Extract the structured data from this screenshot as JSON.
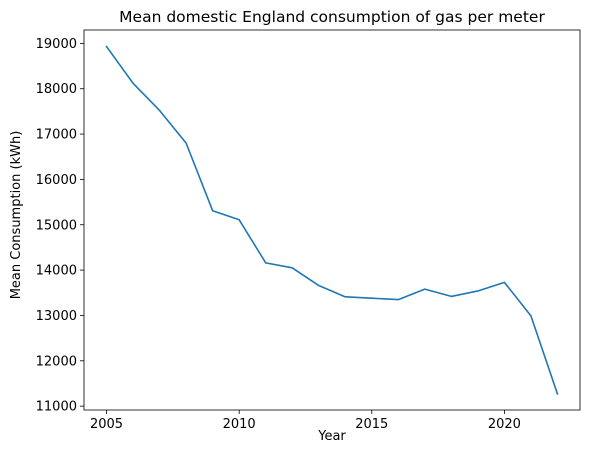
{
  "chart_data": {
    "type": "line",
    "title": "Mean domestic England consumption of gas per meter",
    "xlabel": "Year",
    "ylabel": "Mean Consumption (kWh)",
    "xlim": [
      2004.15,
      2022.85
    ],
    "ylim": [
      10915,
      19295
    ],
    "xticks": [
      2005,
      2010,
      2015,
      2020
    ],
    "yticks": [
      11000,
      12000,
      13000,
      14000,
      15000,
      16000,
      17000,
      18000,
      19000
    ],
    "grid": false,
    "line_color": "#1f77b4",
    "series": [
      {
        "x": [
          2005,
          2006,
          2007,
          2008,
          2009,
          2010,
          2011,
          2012,
          2013,
          2014,
          2015,
          2016,
          2017,
          2018,
          2019,
          2020,
          2021,
          2022
        ],
        "values": [
          18930,
          18120,
          17520,
          16800,
          15310,
          15110,
          14160,
          14050,
          13660,
          13410,
          13380,
          13350,
          13580,
          13420,
          13540,
          13730,
          12990,
          11270
        ]
      }
    ]
  }
}
